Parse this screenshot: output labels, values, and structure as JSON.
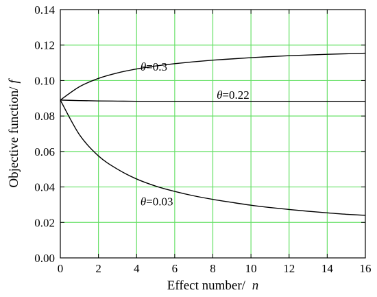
{
  "chart_data": {
    "type": "line",
    "title": "",
    "xlabel_text": "Effect number/",
    "xlabel_var": "n",
    "ylabel_text": "Objective function/",
    "ylabel_var": "f",
    "xlim": [
      0,
      16
    ],
    "ylim": [
      0.0,
      0.14
    ],
    "xticks": [
      0,
      2,
      4,
      6,
      8,
      10,
      12,
      14,
      16
    ],
    "xtick_labels": [
      "0",
      "2",
      "4",
      "6",
      "8",
      "10",
      "12",
      "14",
      "16"
    ],
    "yticks": [
      0.0,
      0.02,
      0.04,
      0.06,
      0.08,
      0.1,
      0.12,
      0.14
    ],
    "ytick_labels": [
      "0.00",
      "0.02",
      "0.04",
      "0.06",
      "0.08",
      "0.10",
      "0.12",
      "0.14"
    ],
    "grid": true,
    "legend": "none",
    "colors": {
      "grid": "#66e066",
      "curve": "#000000",
      "axis": "#000000"
    },
    "x": [
      0,
      1,
      2,
      3,
      4,
      5,
      6,
      7,
      8,
      9,
      10,
      11,
      12,
      13,
      14,
      15,
      16
    ],
    "series": [
      {
        "label_symbol": "θ",
        "label_value": "=0.3",
        "label_at": [
          4.2,
          0.1055
        ],
        "values": [
          0.089,
          0.0965,
          0.1012,
          0.1043,
          0.1065,
          0.1082,
          0.1095,
          0.1106,
          0.1115,
          0.1122,
          0.1129,
          0.1135,
          0.114,
          0.1144,
          0.1148,
          0.1151,
          0.1154
        ]
      },
      {
        "label_symbol": "θ",
        "label_value": "=0.22",
        "label_at": [
          8.2,
          0.0898
        ],
        "values": [
          0.089,
          0.0887,
          0.0885,
          0.0884,
          0.0883,
          0.0883,
          0.0883,
          0.0883,
          0.0883,
          0.0883,
          0.0883,
          0.0883,
          0.0883,
          0.0883,
          0.0883,
          0.0883,
          0.0883
        ]
      },
      {
        "label_symbol": "θ",
        "label_value": "=0.03",
        "label_at": [
          4.2,
          0.0295
        ],
        "values": [
          0.089,
          0.0695,
          0.0575,
          0.05,
          0.0445,
          0.0405,
          0.0375,
          0.035,
          0.033,
          0.0313,
          0.0297,
          0.0284,
          0.0273,
          0.0263,
          0.0254,
          0.0246,
          0.024
        ]
      }
    ]
  }
}
